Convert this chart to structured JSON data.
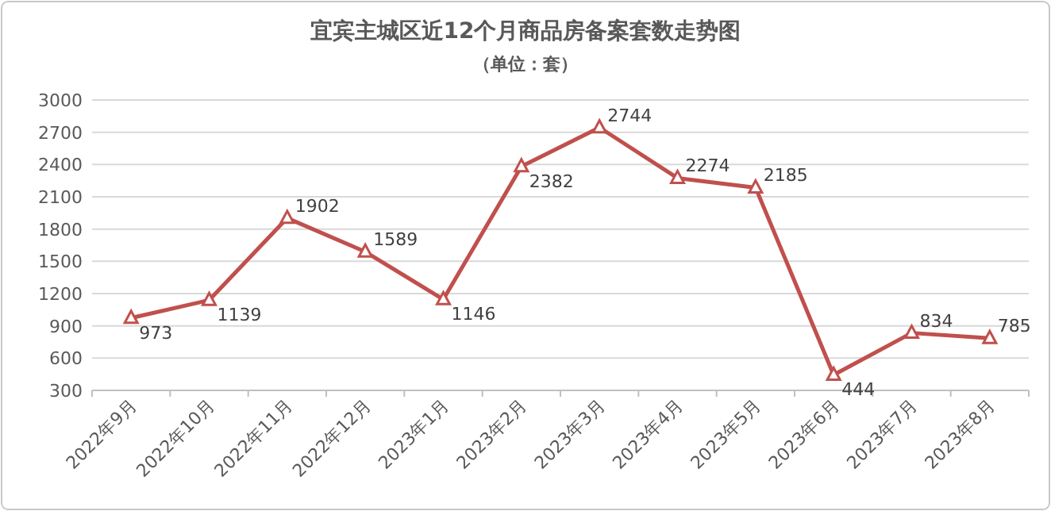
{
  "chart_data": {
    "type": "line",
    "title": "宜宾主城区近12个月商品房备案套数走势图",
    "subtitle": "（单位：套）",
    "categories": [
      "2022年9月",
      "2022年10月",
      "2022年11月",
      "2022年12月",
      "2023年1月",
      "2023年2月",
      "2023年3月",
      "2023年4月",
      "2023年5月",
      "2023年6月",
      "2023年7月",
      "2023年8月"
    ],
    "values": [
      973,
      1139,
      1902,
      1589,
      1146,
      2382,
      2744,
      2274,
      2185,
      444,
      834,
      785
    ],
    "color": "#c0504d",
    "ylim": [
      300,
      3000
    ],
    "yticks": [
      300,
      600,
      900,
      1200,
      1500,
      1800,
      2100,
      2400,
      2700,
      3000
    ],
    "grid": "y",
    "marker": "triangle",
    "line_style": "solid",
    "data_labels": true
  }
}
